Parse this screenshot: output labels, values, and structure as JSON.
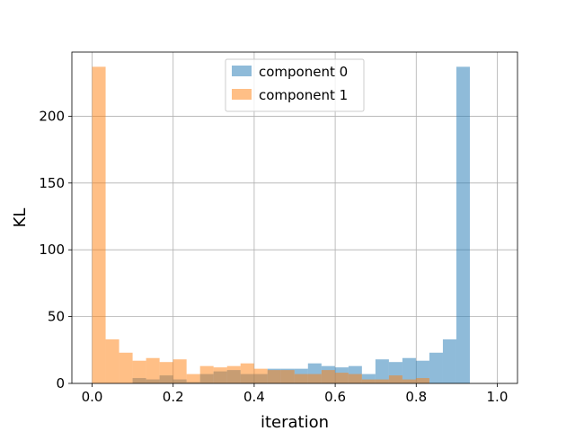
{
  "chart_data": {
    "type": "bar",
    "subtype": "overlaid-histogram",
    "xlabel": "iteration",
    "ylabel": "KL",
    "xlim": [
      -0.05,
      1.05
    ],
    "ylim": [
      0,
      248
    ],
    "xticks": [
      0.0,
      0.2,
      0.4,
      0.6,
      0.8,
      1.0
    ],
    "xtick_labels": [
      "0.0",
      "0.2",
      "0.4",
      "0.6",
      "0.8",
      "1.0"
    ],
    "yticks": [
      0,
      50,
      100,
      150,
      200
    ],
    "ytick_labels": [
      "0",
      "50",
      "100",
      "150",
      "200"
    ],
    "grid": true,
    "legend_position": "top-center",
    "bin_start": 0.0,
    "bin_width": 0.0333,
    "series": [
      {
        "name": "component 0",
        "color": "#1f77b4",
        "alpha": 0.5,
        "values": [
          0,
          0,
          0,
          4,
          3,
          6,
          3,
          1,
          7,
          9,
          10,
          7,
          7,
          11,
          11,
          11,
          15,
          13,
          12,
          13,
          7,
          18,
          16,
          19,
          17,
          23,
          33,
          237
        ]
      },
      {
        "name": "component 1",
        "color": "#ff7f0e",
        "alpha": 0.5,
        "values": [
          237,
          33,
          23,
          17,
          19,
          16,
          18,
          7,
          13,
          12,
          13,
          15,
          11,
          10,
          10,
          7,
          7,
          10,
          8,
          7,
          3,
          3,
          6,
          3,
          4,
          0,
          0,
          0
        ]
      }
    ]
  }
}
